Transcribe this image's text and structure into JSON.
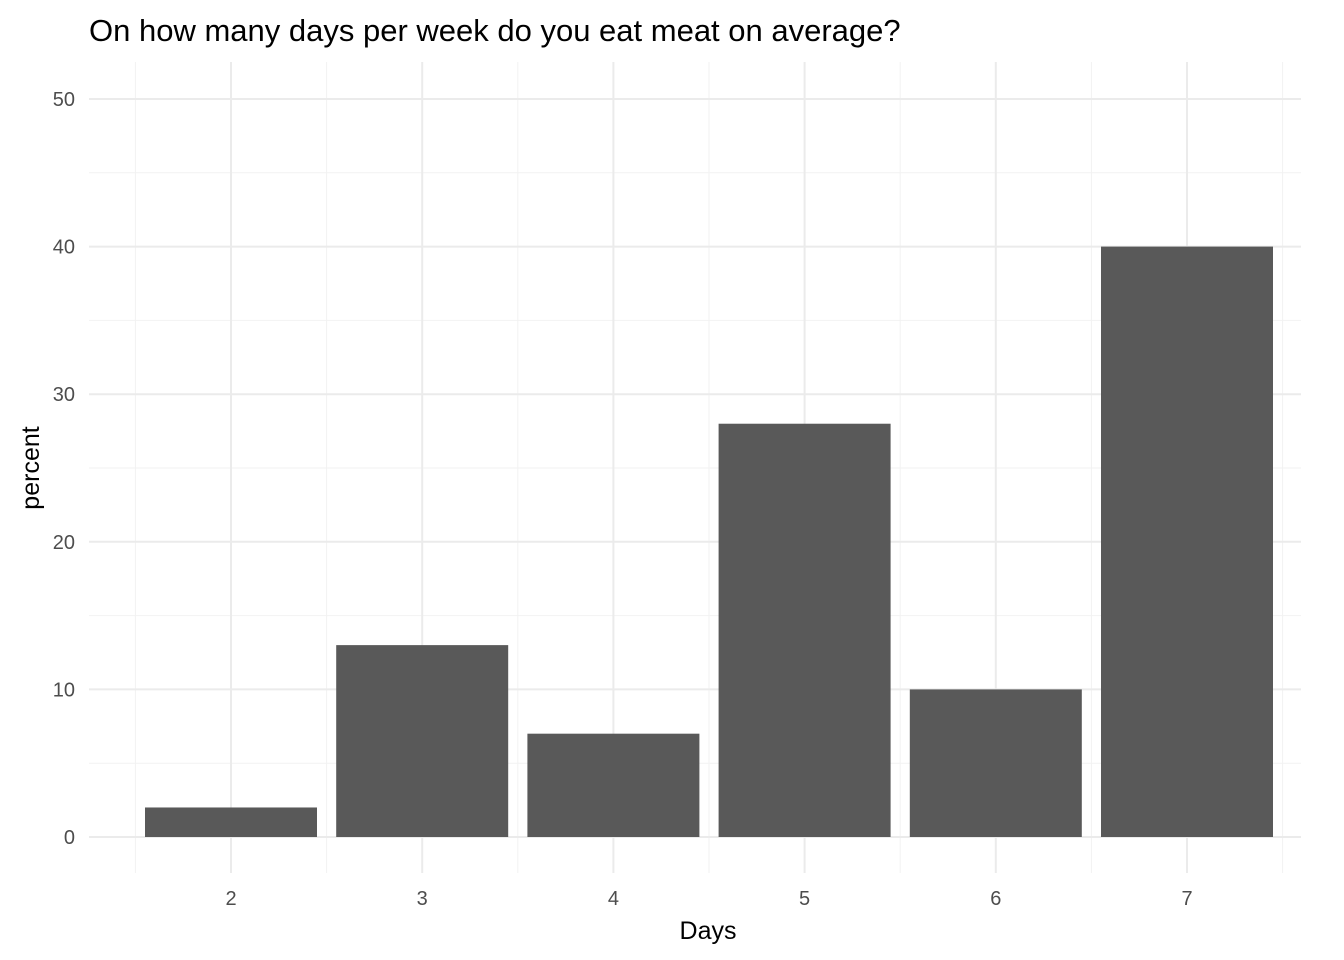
{
  "chart_data": {
    "type": "bar",
    "title": "On how many days per week do you eat meat on average?",
    "xlabel": "Days",
    "ylabel": "percent",
    "categories": [
      "2",
      "3",
      "4",
      "5",
      "6",
      "7"
    ],
    "values": [
      2,
      13,
      7,
      28,
      10,
      40
    ],
    "ylim": [
      0,
      50
    ],
    "yticks": [
      "0",
      "10",
      "20",
      "30",
      "40",
      "50"
    ],
    "bar_color": "#595959",
    "grid": true,
    "legend": "none"
  }
}
